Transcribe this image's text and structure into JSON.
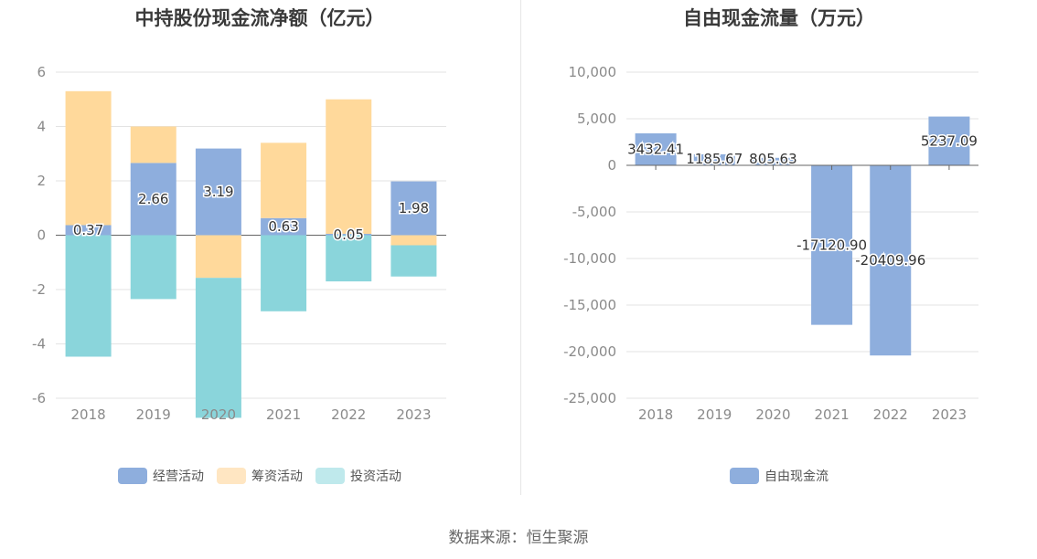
{
  "source_note": "数据来源：恒生聚源",
  "chart_data": [
    {
      "type": "bar",
      "stacked": true,
      "title": "中持股份现金流净额（亿元）",
      "categories": [
        "2018",
        "2019",
        "2020",
        "2021",
        "2022",
        "2023"
      ],
      "ylim": [
        -6,
        6
      ],
      "yticks": [
        6,
        4,
        2,
        0,
        -2,
        -4,
        -6
      ],
      "ytick_labels": [
        "6",
        "4",
        "2",
        "0",
        "-2",
        "-4",
        "-6"
      ],
      "grid": true,
      "legend_position": "bottom",
      "series": [
        {
          "name": "经营活动",
          "color": "#8eaedd",
          "legend_color": "#8eaedd",
          "values": [
            0.37,
            2.66,
            3.19,
            0.63,
            0.05,
            1.98
          ],
          "labels": [
            "0.37",
            "2.66",
            "3.19",
            "0.63",
            "0.05",
            "1.98"
          ]
        },
        {
          "name": "筹资活动",
          "color": "#ffd99b",
          "legend_color": "#ffe6c2",
          "values": [
            4.93,
            1.34,
            -1.57,
            2.77,
            4.95,
            -0.37
          ]
        },
        {
          "name": "投资活动",
          "color": "#8ad5db",
          "legend_color": "#bfe9ec",
          "values": [
            -4.47,
            -2.35,
            -5.15,
            -2.8,
            -1.7,
            -1.15
          ]
        }
      ]
    },
    {
      "type": "bar",
      "title": "自由现金流量（万元）",
      "categories": [
        "2018",
        "2019",
        "2020",
        "2021",
        "2022",
        "2023"
      ],
      "ylim": [
        -25000,
        10000
      ],
      "yticks": [
        10000,
        5000,
        0,
        -5000,
        -10000,
        -15000,
        -20000,
        -25000
      ],
      "ytick_labels": [
        "10,000",
        "5,000",
        "0",
        "-5,000",
        "-10,000",
        "-15,000",
        "-20,000",
        "-25,000"
      ],
      "grid": true,
      "legend_position": "bottom",
      "series": [
        {
          "name": "自由现金流",
          "color": "#8eaedd",
          "legend_color": "#8eaedd",
          "values": [
            3432.41,
            1185.67,
            805.63,
            -17120.9,
            -20409.96,
            5237.09
          ],
          "labels": [
            "3432.41",
            "1185.67",
            "805.63",
            "-17120.90",
            "-20409.96",
            "5237.09"
          ]
        }
      ]
    }
  ]
}
